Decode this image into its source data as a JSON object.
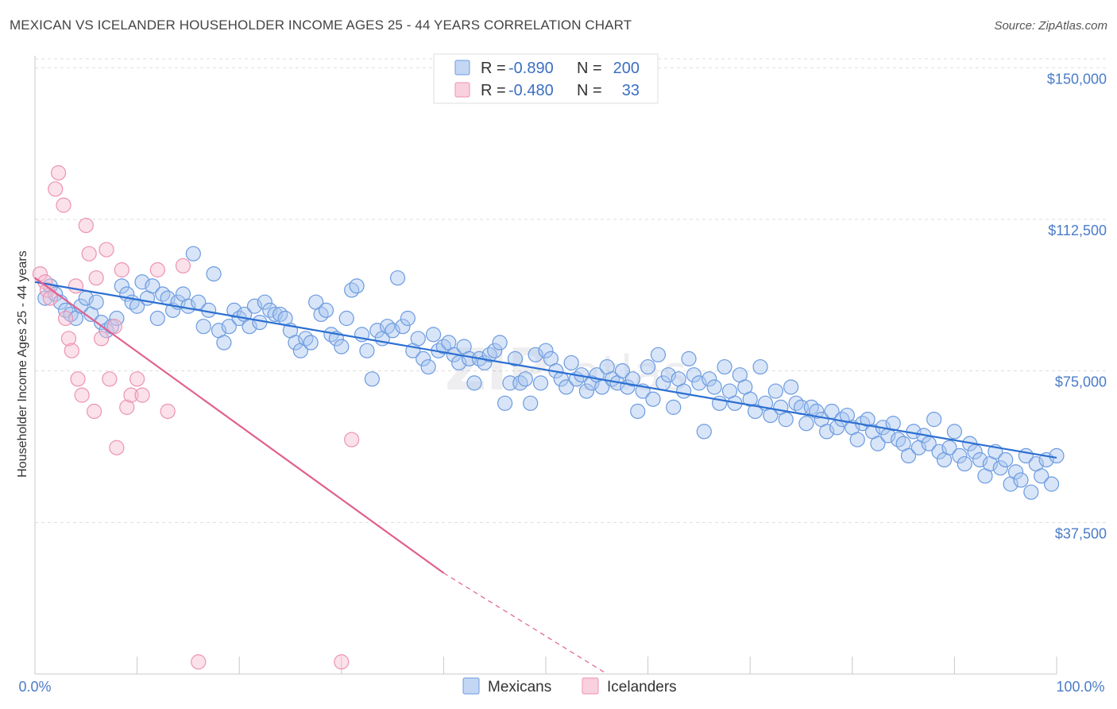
{
  "title": "MEXICAN VS ICELANDER HOUSEHOLDER INCOME AGES 25 - 44 YEARS CORRELATION CHART",
  "source": "Source: ZipAtlas.com",
  "colors": {
    "mexicans_fill": "#a9c6f0",
    "mexicans_stroke": "#6c9be0",
    "mexicans_line": "#2b6fd1",
    "icelanders_fill": "#f7bcd0",
    "icelanders_stroke": "#ec93b2",
    "icelanders_line": "#e0608f"
  },
  "legend": {
    "rows": [
      {
        "r_label": "R =",
        "r_value": "-0.890",
        "n_label": "N =",
        "n_value": "200"
      },
      {
        "r_label": "R =",
        "r_value": "-0.480",
        "n_label": "N =",
        "n_value": "33"
      }
    ]
  },
  "bottom_legend": {
    "mexicans": "Mexicans",
    "icelanders": "Icelanders"
  },
  "chart_data": {
    "type": "scatter",
    "title": "MEXICAN VS ICELANDER HOUSEHOLDER INCOME AGES 25 - 44 YEARS CORRELATION CHART",
    "xlabel": "",
    "ylabel": "Householder Income Ages 25 - 44 years",
    "xlim": [
      0,
      100
    ],
    "ylim": [
      0,
      153000
    ],
    "x_tick_labels": [
      "0.0%",
      "100.0%"
    ],
    "y_ticks": [
      37500,
      75000,
      112500,
      150000
    ],
    "y_tick_labels": [
      "$37,500",
      "$75,000",
      "$112,500",
      "$150,000"
    ],
    "grid": true,
    "series": [
      {
        "name": "Mexicans",
        "trend": {
          "x": [
            0,
            100
          ],
          "y": [
            97000,
            53500
          ]
        },
        "points": [
          [
            1,
            93000
          ],
          [
            1.5,
            96000
          ],
          [
            2,
            94000
          ],
          [
            2.5,
            92000
          ],
          [
            3,
            90000
          ],
          [
            3.5,
            89000
          ],
          [
            4,
            88000
          ],
          [
            4.5,
            91000
          ],
          [
            5,
            93000
          ],
          [
            5.5,
            89000
          ],
          [
            6,
            92000
          ],
          [
            6.5,
            87000
          ],
          [
            7,
            85000
          ],
          [
            7.5,
            86000
          ],
          [
            8,
            88000
          ],
          [
            8.5,
            96000
          ],
          [
            9,
            94000
          ],
          [
            9.5,
            92000
          ],
          [
            10,
            91000
          ],
          [
            10.5,
            97000
          ],
          [
            11,
            93000
          ],
          [
            11.5,
            96000
          ],
          [
            12,
            88000
          ],
          [
            12.5,
            94000
          ],
          [
            13,
            93000
          ],
          [
            13.5,
            90000
          ],
          [
            14,
            92000
          ],
          [
            14.5,
            94000
          ],
          [
            15,
            91000
          ],
          [
            15.5,
            104000
          ],
          [
            16,
            92000
          ],
          [
            16.5,
            86000
          ],
          [
            17,
            90000
          ],
          [
            17.5,
            99000
          ],
          [
            18,
            85000
          ],
          [
            18.5,
            82000
          ],
          [
            19,
            86000
          ],
          [
            19.5,
            90000
          ],
          [
            20,
            88000
          ],
          [
            20.5,
            89000
          ],
          [
            21,
            86000
          ],
          [
            21.5,
            91000
          ],
          [
            22,
            87000
          ],
          [
            22.5,
            92000
          ],
          [
            23,
            90000
          ],
          [
            23.5,
            89000
          ],
          [
            24,
            89000
          ],
          [
            24.5,
            88000
          ],
          [
            25,
            85000
          ],
          [
            25.5,
            82000
          ],
          [
            26,
            80000
          ],
          [
            26.5,
            83000
          ],
          [
            27,
            82000
          ],
          [
            27.5,
            92000
          ],
          [
            28,
            89000
          ],
          [
            28.5,
            90000
          ],
          [
            29,
            84000
          ],
          [
            29.5,
            83000
          ],
          [
            30,
            81000
          ],
          [
            30.5,
            88000
          ],
          [
            31,
            95000
          ],
          [
            31.5,
            96000
          ],
          [
            32,
            84000
          ],
          [
            32.5,
            80000
          ],
          [
            33,
            73000
          ],
          [
            33.5,
            85000
          ],
          [
            34,
            83000
          ],
          [
            34.5,
            86000
          ],
          [
            35,
            85000
          ],
          [
            35.5,
            98000
          ],
          [
            36,
            86000
          ],
          [
            36.5,
            88000
          ],
          [
            37,
            80000
          ],
          [
            37.5,
            83000
          ],
          [
            38,
            78000
          ],
          [
            38.5,
            76000
          ],
          [
            39,
            84000
          ],
          [
            39.5,
            80000
          ],
          [
            40,
            81000
          ],
          [
            40.5,
            82000
          ],
          [
            41,
            79000
          ],
          [
            41.5,
            77000
          ],
          [
            42,
            81000
          ],
          [
            42.5,
            78000
          ],
          [
            43,
            72000
          ],
          [
            43.5,
            78000
          ],
          [
            44,
            77000
          ],
          [
            44.5,
            79000
          ],
          [
            45,
            80000
          ],
          [
            45.5,
            82000
          ],
          [
            46,
            67000
          ],
          [
            46.5,
            72000
          ],
          [
            47,
            78000
          ],
          [
            47.5,
            72000
          ],
          [
            48,
            73000
          ],
          [
            48.5,
            67000
          ],
          [
            49,
            79000
          ],
          [
            49.5,
            72000
          ],
          [
            50,
            80000
          ],
          [
            50.5,
            78000
          ],
          [
            51,
            75000
          ],
          [
            51.5,
            73000
          ],
          [
            52,
            71000
          ],
          [
            52.5,
            77000
          ],
          [
            53,
            73000
          ],
          [
            53.5,
            74000
          ],
          [
            54,
            70000
          ],
          [
            54.5,
            72000
          ],
          [
            55,
            74000
          ],
          [
            55.5,
            71000
          ],
          [
            56,
            76000
          ],
          [
            56.5,
            73000
          ],
          [
            57,
            72000
          ],
          [
            57.5,
            75000
          ],
          [
            58,
            71000
          ],
          [
            58.5,
            73000
          ],
          [
            59,
            65000
          ],
          [
            59.5,
            70000
          ],
          [
            60,
            76000
          ],
          [
            60.5,
            68000
          ],
          [
            61,
            79000
          ],
          [
            61.5,
            72000
          ],
          [
            62,
            74000
          ],
          [
            62.5,
            66000
          ],
          [
            63,
            73000
          ],
          [
            63.5,
            70000
          ],
          [
            64,
            78000
          ],
          [
            64.5,
            74000
          ],
          [
            65,
            72000
          ],
          [
            65.5,
            60000
          ],
          [
            66,
            73000
          ],
          [
            66.5,
            71000
          ],
          [
            67,
            67000
          ],
          [
            67.5,
            76000
          ],
          [
            68,
            70000
          ],
          [
            68.5,
            67000
          ],
          [
            69,
            74000
          ],
          [
            69.5,
            71000
          ],
          [
            70,
            68000
          ],
          [
            70.5,
            65000
          ],
          [
            71,
            76000
          ],
          [
            71.5,
            67000
          ],
          [
            72,
            64000
          ],
          [
            72.5,
            70000
          ],
          [
            73,
            66000
          ],
          [
            73.5,
            63000
          ],
          [
            74,
            71000
          ],
          [
            74.5,
            67000
          ],
          [
            75,
            66000
          ],
          [
            75.5,
            62000
          ],
          [
            76,
            66000
          ],
          [
            76.5,
            65000
          ],
          [
            77,
            63000
          ],
          [
            77.5,
            60000
          ],
          [
            78,
            65000
          ],
          [
            78.5,
            61000
          ],
          [
            79,
            63000
          ],
          [
            79.5,
            64000
          ],
          [
            80,
            61000
          ],
          [
            80.5,
            58000
          ],
          [
            81,
            62000
          ],
          [
            81.5,
            63000
          ],
          [
            82,
            60000
          ],
          [
            82.5,
            57000
          ],
          [
            83,
            61000
          ],
          [
            83.5,
            59000
          ],
          [
            84,
            62000
          ],
          [
            84.5,
            58000
          ],
          [
            85,
            57000
          ],
          [
            85.5,
            54000
          ],
          [
            86,
            60000
          ],
          [
            86.5,
            56000
          ],
          [
            87,
            59000
          ],
          [
            87.5,
            57000
          ],
          [
            88,
            63000
          ],
          [
            88.5,
            55000
          ],
          [
            89,
            53000
          ],
          [
            89.5,
            56000
          ],
          [
            90,
            60000
          ],
          [
            90.5,
            54000
          ],
          [
            91,
            52000
          ],
          [
            91.5,
            57000
          ],
          [
            92,
            55000
          ],
          [
            92.5,
            53000
          ],
          [
            93,
            49000
          ],
          [
            93.5,
            52000
          ],
          [
            94,
            55000
          ],
          [
            94.5,
            51000
          ],
          [
            95,
            53000
          ],
          [
            95.5,
            47000
          ],
          [
            96,
            50000
          ],
          [
            96.5,
            48000
          ],
          [
            97,
            54000
          ],
          [
            97.5,
            45000
          ],
          [
            98,
            52000
          ],
          [
            98.5,
            49000
          ],
          [
            99,
            53000
          ],
          [
            99.5,
            47000
          ],
          [
            100,
            54000
          ]
        ]
      },
      {
        "name": "Icelanders",
        "trend": {
          "x": [
            0,
            40
          ],
          "y": [
            98000,
            25000
          ]
        },
        "trend_dashed": {
          "x": [
            40,
            56
          ],
          "y": [
            25000,
            -4000
          ]
        },
        "points": [
          [
            0.5,
            99000
          ],
          [
            1,
            97000
          ],
          [
            1.2,
            95000
          ],
          [
            1.5,
            93000
          ],
          [
            2,
            120000
          ],
          [
            2.3,
            124000
          ],
          [
            2.8,
            116000
          ],
          [
            3,
            88000
          ],
          [
            3.3,
            83000
          ],
          [
            3.6,
            80000
          ],
          [
            4,
            96000
          ],
          [
            4.2,
            73000
          ],
          [
            4.6,
            69000
          ],
          [
            5,
            111000
          ],
          [
            5.3,
            104000
          ],
          [
            5.8,
            65000
          ],
          [
            6,
            98000
          ],
          [
            6.5,
            83000
          ],
          [
            7,
            105000
          ],
          [
            7.3,
            73000
          ],
          [
            7.8,
            86000
          ],
          [
            8,
            56000
          ],
          [
            8.5,
            100000
          ],
          [
            9,
            66000
          ],
          [
            9.4,
            69000
          ],
          [
            10,
            73000
          ],
          [
            10.5,
            69000
          ],
          [
            12,
            100000
          ],
          [
            13,
            65000
          ],
          [
            14.5,
            101000
          ],
          [
            16,
            3000
          ],
          [
            30,
            3000
          ],
          [
            31,
            58000
          ]
        ]
      }
    ]
  }
}
